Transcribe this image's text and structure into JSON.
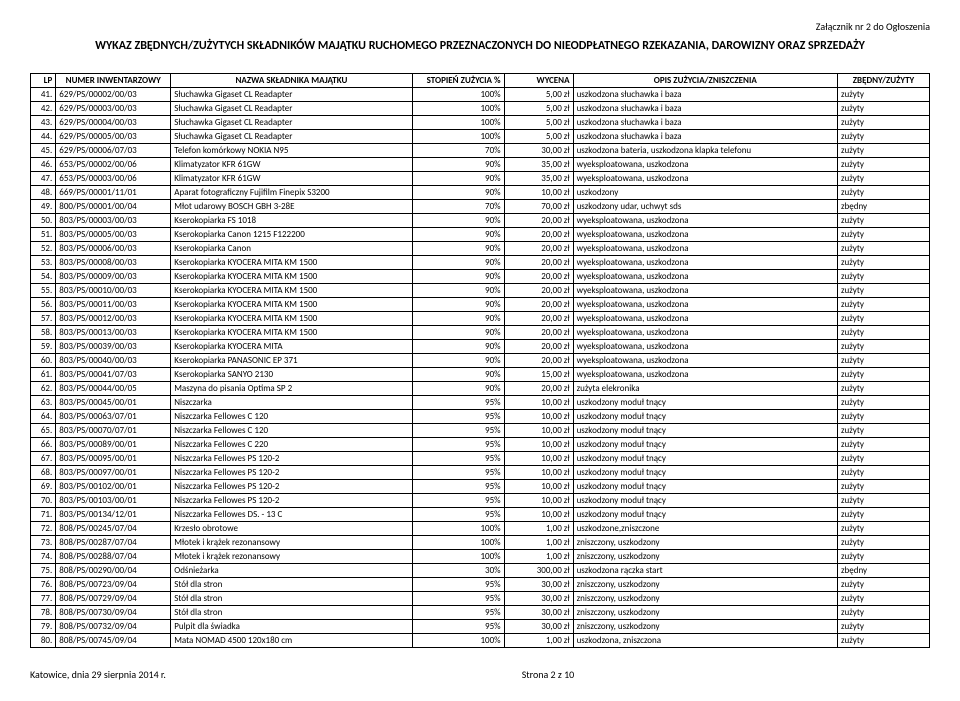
{
  "attachment": "Załącznik nr 2 do Ogłoszenia",
  "title": "WYKAZ ZBĘDNYCH/ZUŻYTYCH SKŁADNIKÓW MAJĄTKU RUCHOMEGO PRZEZNACZONYCH DO NIEODPŁATNEGO RZEKAZANIA, DAROWIZNY ORAZ SPRZEDAŻY",
  "columns": [
    "LP",
    "NUMER INWENTARZOWY",
    "NAZWA SKŁADNIKA MAJĄTKU",
    "STOPIEŃ ZUŻYCIA %",
    "WYCENA",
    "OPIS ZUŻYCIA/ZNISZCZENIA",
    "ZBĘDNY/ZUŻYTY"
  ],
  "rows": [
    [
      "41.",
      "629/PS/00002/00/03",
      "Słuchawka Gigaset CL Readapter",
      "100%",
      "5,00 zł",
      "uszkodzona słuchawka i baza",
      "zużyty"
    ],
    [
      "42.",
      "629/PS/00003/00/03",
      "Słuchawka Gigaset CL Readapter",
      "100%",
      "5,00 zł",
      "uszkodzona słuchawka i baza",
      "zużyty"
    ],
    [
      "43.",
      "629/PS/00004/00/03",
      "Słuchawka Gigaset CL Readapter",
      "100%",
      "5,00 zł",
      "uszkodzona słuchawka i baza",
      "zużyty"
    ],
    [
      "44.",
      "629/PS/00005/00/03",
      "Słuchawka Gigaset CL Readapter",
      "100%",
      "5,00 zł",
      "uszkodzona słuchawka i baza",
      "zużyty"
    ],
    [
      "45.",
      "629/PS/00006/07/03",
      "Telefon komórkowy NOKIA N95",
      "70%",
      "30,00 zł",
      "uszkodzona bateria, uszkodzona klapka telefonu",
      "zużyty"
    ],
    [
      "46.",
      "653/PS/00002/00/06",
      "Klimatyzator KFR 61GW",
      "90%",
      "35,00 zł",
      "wyeksploatowana, uszkodzona",
      "zużyty"
    ],
    [
      "47.",
      "653/PS/00003/00/06",
      "Klimatyzator KFR 61GW",
      "90%",
      "35,00 zł",
      "wyeksploatowana, uszkodzona",
      "zużyty"
    ],
    [
      "48.",
      "669/PS/00001/11/01",
      "Aparat fotograficzny Fujifilm Finepix S3200",
      "90%",
      "10,00 zł",
      "uszkodzony",
      "zużyty"
    ],
    [
      "49.",
      "800/PS/00001/00/04",
      "Młot udarowy BOSCH GBH 3-28E",
      "70%",
      "70,00 zł",
      "uszkodzony udar, uchwyt sds",
      "zbędny"
    ],
    [
      "50.",
      "803/PS/00003/00/03",
      "Kserokopiarka FS 1018",
      "90%",
      "20,00 zł",
      "wyeksploatowana, uszkodzona",
      "zużyty"
    ],
    [
      "51.",
      "803/PS/00005/00/03",
      "Kserokopiarka Canon 1215 F122200",
      "90%",
      "20,00 zł",
      "wyeksploatowana, uszkodzona",
      "zużyty"
    ],
    [
      "52.",
      "803/PS/00006/00/03",
      "Kserokopiarka Canon",
      "90%",
      "20,00 zł",
      "wyeksploatowana, uszkodzona",
      "zużyty"
    ],
    [
      "53.",
      "803/PS/00008/00/03",
      "Kserokopiarka KYOCERA MITA KM 1500",
      "90%",
      "20,00 zł",
      "wyeksploatowana, uszkodzona",
      "zużyty"
    ],
    [
      "54.",
      "803/PS/00009/00/03",
      "Kserokopiarka KYOCERA MITA KM 1500",
      "90%",
      "20,00 zł",
      "wyeksploatowana, uszkodzona",
      "zużyty"
    ],
    [
      "55.",
      "803/PS/00010/00/03",
      "Kserokopiarka KYOCERA MITA KM 1500",
      "90%",
      "20,00 zł",
      "wyeksploatowana, uszkodzona",
      "zużyty"
    ],
    [
      "56.",
      "803/PS/00011/00/03",
      "Kserokopiarka KYOCERA MITA KM 1500",
      "90%",
      "20,00 zł",
      "wyeksploatowana, uszkodzona",
      "zużyty"
    ],
    [
      "57.",
      "803/PS/00012/00/03",
      "Kserokopiarka KYOCERA MITA KM 1500",
      "90%",
      "20,00 zł",
      "wyeksploatowana, uszkodzona",
      "zużyty"
    ],
    [
      "58.",
      "803/PS/00013/00/03",
      "Kserokopiarka KYOCERA MITA KM 1500",
      "90%",
      "20,00 zł",
      "wyeksploatowana, uszkodzona",
      "zużyty"
    ],
    [
      "59.",
      "803/PS/00039/00/03",
      "Kserokopiarka KYOCERA MITA",
      "90%",
      "20,00 zł",
      "wyeksploatowana, uszkodzona",
      "zużyty"
    ],
    [
      "60.",
      "803/PS/00040/00/03",
      "Kserokopiarka PANASONIC EP 371",
      "90%",
      "20,00 zł",
      "wyeksploatowana, uszkodzona",
      "zużyty"
    ],
    [
      "61.",
      "803/PS/00041/07/03",
      "Kserokopiarka SANYO 2130",
      "90%",
      "15,00 zł",
      "wyeksploatowana, uszkodzona",
      "zużyty"
    ],
    [
      "62.",
      "803/PS/00044/00/05",
      "Maszyna do pisania Optima SP 2",
      "90%",
      "20,00 zł",
      "zużyta elekronika",
      "zużyty"
    ],
    [
      "63.",
      "803/PS/00045/00/01",
      "Niszczarka",
      "95%",
      "10,00 zł",
      "uszkodzony moduł tnący",
      "zużyty"
    ],
    [
      "64.",
      "803/PS/00063/07/01",
      "Niszczarka Fellowes C 120",
      "95%",
      "10,00 zł",
      "uszkodzony moduł tnący",
      "zużyty"
    ],
    [
      "65.",
      "803/PS/00070/07/01",
      "Niszczarka Fellowes C 120",
      "95%",
      "10,00 zł",
      "uszkodzony moduł tnący",
      "zużyty"
    ],
    [
      "66.",
      "803/PS/00089/00/01",
      "Niszczarka Fellowes C 220",
      "95%",
      "10,00 zł",
      "uszkodzony moduł tnący",
      "zużyty"
    ],
    [
      "67.",
      "803/PS/00095/00/01",
      "Niszczarka Fellowes PS 120-2",
      "95%",
      "10,00 zł",
      "uszkodzony moduł tnący",
      "zużyty"
    ],
    [
      "68.",
      "803/PS/00097/00/01",
      "Niszczarka Fellowes PS 120-2",
      "95%",
      "10,00 zł",
      "uszkodzony moduł tnący",
      "zużyty"
    ],
    [
      "69.",
      "803/PS/00102/00/01",
      "Niszczarka Fellowes PS 120-2",
      "95%",
      "10,00 zł",
      "uszkodzony moduł tnący",
      "zużyty"
    ],
    [
      "70.",
      "803/PS/00103/00/01",
      "Niszczarka Fellowes PS 120-2",
      "95%",
      "10,00 zł",
      "uszkodzony moduł tnący",
      "zużyty"
    ],
    [
      "71.",
      "803/PS/00134/12/01",
      "Niszczarka Fellowes DS. - 13 C",
      "95%",
      "10,00 zł",
      "uszkodzony moduł tnący",
      "zużyty"
    ],
    [
      "72.",
      "808/PS/00245/07/04",
      "Krzesło obrotowe",
      "100%",
      "1,00 zł",
      "uszkodzone,zniszczone",
      "zużyty"
    ],
    [
      "73.",
      "808/PS/00287/07/04",
      "Młotek i krążek rezonansowy",
      "100%",
      "1,00 zł",
      "zniszczony, uszkodzony",
      "zużyty"
    ],
    [
      "74.",
      "808/PS/00288/07/04",
      "Młotek i krążek rezonansowy",
      "100%",
      "1,00 zł",
      "zniszczony, uszkodzony",
      "zużyty"
    ],
    [
      "75.",
      "808/PS/00290/00/04",
      "Odśnieżarka",
      "30%",
      "300,00 zł",
      "uszkodzona rączka start",
      "zbędny"
    ],
    [
      "76.",
      "808/PS/00723/09/04",
      "Stół dla stron",
      "95%",
      "30,00 zł",
      "zniszczony, uszkodzony",
      "zużyty"
    ],
    [
      "77.",
      "808/PS/00729/09/04",
      "Stół dla stron",
      "95%",
      "30,00 zł",
      "zniszczony, uszkodzony",
      "zużyty"
    ],
    [
      "78.",
      "808/PS/00730/09/04",
      "Stół dla stron",
      "95%",
      "30,00 zł",
      "zniszczony, uszkodzony",
      "zużyty"
    ],
    [
      "79.",
      "808/PS/00732/09/04",
      "Pulpit dla świadka",
      "95%",
      "30,00 zł",
      "zniszczony, uszkodzony",
      "zużyty"
    ],
    [
      "80.",
      "808/PS/00745/09/04",
      "Mata NOMAD 4500 120x180 cm",
      "100%",
      "1,00 zł",
      "uszkodzona, zniszczona",
      "zużyty"
    ]
  ],
  "footer": {
    "left": "Katowice, dnia 29 sierpnia 2014 r.",
    "center": "Strona 2 z 10"
  }
}
